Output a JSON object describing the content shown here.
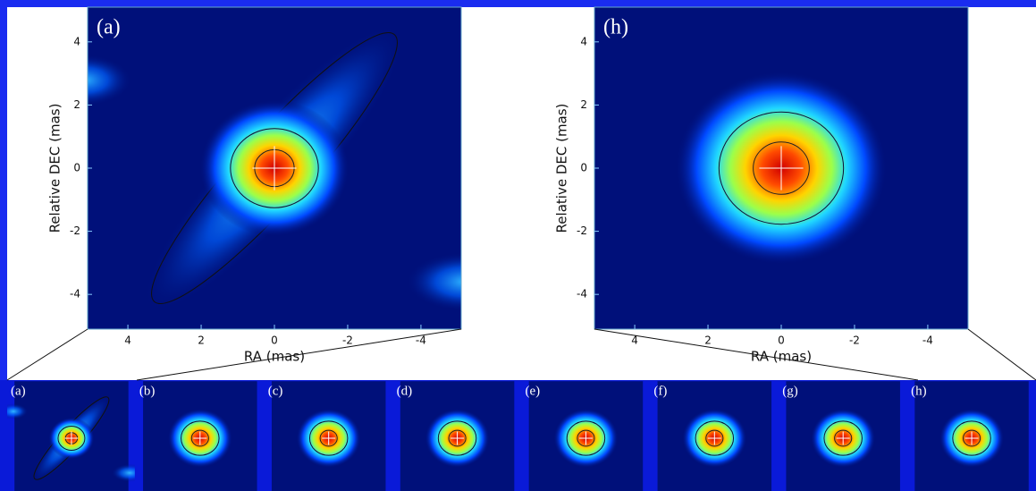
{
  "chart_data": [
    {
      "type": "heatmap",
      "title": "(a)",
      "x_label": "RA (mas)",
      "y_label": "Relative DEC (mas)",
      "xlim": [
        5.1,
        -5.1
      ],
      "ylim": [
        -5.1,
        5.1
      ],
      "xticks": [
        4,
        2,
        0,
        -2,
        -4
      ],
      "yticks": [
        4,
        2,
        0,
        -2,
        -4
      ]
    },
    {
      "type": "heatmap",
      "title": "(h)",
      "x_label": "RA (mas)",
      "y_label": "Relative DEC (mas)",
      "xlim": [
        5.1,
        -5.1
      ],
      "ylim": [
        -5.1,
        5.1
      ],
      "xticks": [
        4,
        2,
        0,
        -2,
        -4
      ],
      "yticks": [
        4,
        2,
        0,
        -2,
        -4
      ]
    }
  ],
  "thumbnails": [
    "(a)",
    "(b)",
    "(c)",
    "(d)",
    "(e)",
    "(f)",
    "(g)",
    "(h)"
  ]
}
